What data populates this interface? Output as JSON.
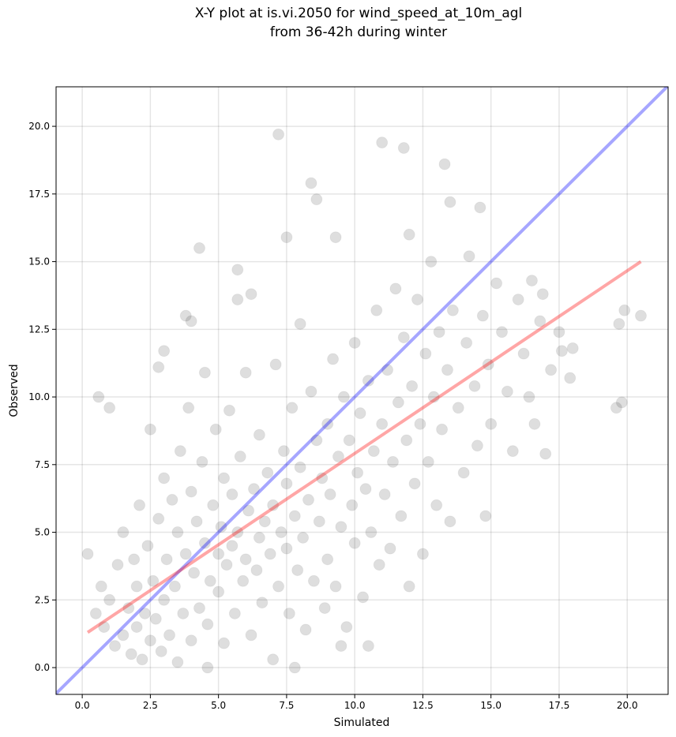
{
  "chart_data": {
    "type": "scatter",
    "title": [
      "X-Y plot at is.vi.2050 for wind_speed_at_10m_agl",
      "from 36-42h during winter"
    ],
    "x_label": "Simulated",
    "y_label": "Observed",
    "xlim": [
      -0.96,
      21.5
    ],
    "ylim": [
      -0.99,
      21.46
    ],
    "xticks": [
      {
        "value": 0,
        "label": "0.0"
      },
      {
        "value": 2.5,
        "label": "2.5"
      },
      {
        "value": 5,
        "label": "5.0"
      },
      {
        "value": 7.5,
        "label": "7.5"
      },
      {
        "value": 10,
        "label": "10.0"
      },
      {
        "value": 12.5,
        "label": "12.5"
      },
      {
        "value": 15,
        "label": "15.0"
      },
      {
        "value": 17.5,
        "label": "17.5"
      },
      {
        "value": 20,
        "label": "20.0"
      }
    ],
    "yticks": [
      {
        "value": 0,
        "label": "0.0"
      },
      {
        "value": 2.5,
        "label": "2.5"
      },
      {
        "value": 5,
        "label": "5.0"
      },
      {
        "value": 7.5,
        "label": "7.5"
      },
      {
        "value": 10,
        "label": "10.0"
      },
      {
        "value": 12.5,
        "label": "12.5"
      },
      {
        "value": 15,
        "label": "15.0"
      },
      {
        "value": 17.5,
        "label": "17.5"
      },
      {
        "value": 20,
        "label": "20.0"
      }
    ],
    "grid": true,
    "color": "#000000",
    "x": [
      7.2,
      11.0,
      11.8,
      13.3,
      8.4,
      8.6,
      13.5,
      14.6,
      7.5,
      4.3,
      5.7,
      9.3,
      12.0,
      0.6,
      1.0,
      19.6,
      19.8,
      20.5,
      19.9,
      19.7,
      17.0,
      4.6,
      7.8,
      0.2,
      2.8,
      3.0,
      3.8,
      4.0,
      5.7,
      6.2,
      10.5,
      9.5,
      14.8,
      16.6,
      17.9,
      18.0,
      17.6,
      16.9,
      16.5,
      0.5,
      0.7,
      0.8,
      1.0,
      1.2,
      1.3,
      1.5,
      1.5,
      1.7,
      1.8,
      1.9,
      2.0,
      2.0,
      2.1,
      2.2,
      2.3,
      2.4,
      2.5,
      2.5,
      2.6,
      2.7,
      2.8,
      2.9,
      3.0,
      3.0,
      3.1,
      3.2,
      3.3,
      3.4,
      3.5,
      3.5,
      3.6,
      3.7,
      3.8,
      3.9,
      4.0,
      4.0,
      4.1,
      4.2,
      4.3,
      4.4,
      4.5,
      4.5,
      4.6,
      4.7,
      4.8,
      4.9,
      5.0,
      5.0,
      5.1,
      5.2,
      5.2,
      5.3,
      5.4,
      5.5,
      5.5,
      5.6,
      5.7,
      5.8,
      5.9,
      6.0,
      6.0,
      6.1,
      6.2,
      6.3,
      6.4,
      6.5,
      6.5,
      6.6,
      6.7,
      6.8,
      6.9,
      7.0,
      7.0,
      7.1,
      7.2,
      7.3,
      7.4,
      7.5,
      7.5,
      7.6,
      7.7,
      7.8,
      7.9,
      8.0,
      8.0,
      8.1,
      8.2,
      8.3,
      8.4,
      8.5,
      8.6,
      8.7,
      8.8,
      8.9,
      9.0,
      9.0,
      9.1,
      9.2,
      9.3,
      9.4,
      9.5,
      9.6,
      9.7,
      9.8,
      9.9,
      10.0,
      10.0,
      10.1,
      10.2,
      10.3,
      10.4,
      10.5,
      10.6,
      10.7,
      10.8,
      10.9,
      11.0,
      11.1,
      11.2,
      11.3,
      11.4,
      11.5,
      11.6,
      11.7,
      11.8,
      11.9,
      12.0,
      12.1,
      12.2,
      12.3,
      12.4,
      12.5,
      12.6,
      12.7,
      12.8,
      12.9,
      13.0,
      13.1,
      13.2,
      13.4,
      13.5,
      13.6,
      13.8,
      14.0,
      14.1,
      14.2,
      14.4,
      14.5,
      14.7,
      14.9,
      15.0,
      15.2,
      15.4,
      15.6,
      15.8,
      16.0,
      16.2,
      16.4,
      16.8,
      17.2,
      17.5
    ],
    "y": [
      19.7,
      19.4,
      19.2,
      18.6,
      17.9,
      17.3,
      17.2,
      17.0,
      15.9,
      15.5,
      14.7,
      15.9,
      16.0,
      10.0,
      9.6,
      9.6,
      9.8,
      13.0,
      13.2,
      12.7,
      7.9,
      0.0,
      0.0,
      4.2,
      11.1,
      11.7,
      13.0,
      12.8,
      13.6,
      13.8,
      0.8,
      0.8,
      5.6,
      9.0,
      10.7,
      11.8,
      11.7,
      13.8,
      14.3,
      2.0,
      3.0,
      1.5,
      2.5,
      0.8,
      3.8,
      1.2,
      5.0,
      2.2,
      0.5,
      4.0,
      1.5,
      3.0,
      6.0,
      0.3,
      2.0,
      4.5,
      1.0,
      8.8,
      3.2,
      1.8,
      5.5,
      0.6,
      2.5,
      7.0,
      4.0,
      1.2,
      6.2,
      3.0,
      0.2,
      5.0,
      8.0,
      2.0,
      4.2,
      9.6,
      1.0,
      6.5,
      3.5,
      5.4,
      2.2,
      7.6,
      4.6,
      10.9,
      1.6,
      3.2,
      6.0,
      8.8,
      2.8,
      4.2,
      5.2,
      7.0,
      0.9,
      3.8,
      9.5,
      4.5,
      6.4,
      2.0,
      5.0,
      7.8,
      3.2,
      4.0,
      10.9,
      5.8,
      1.2,
      6.6,
      3.6,
      4.8,
      8.6,
      2.4,
      5.4,
      7.2,
      4.2,
      0.3,
      6.0,
      11.2,
      3.0,
      5.0,
      8.0,
      4.4,
      6.8,
      2.0,
      9.6,
      5.6,
      3.6,
      7.4,
      12.7,
      4.8,
      1.4,
      6.2,
      10.2,
      3.2,
      8.4,
      5.4,
      7.0,
      2.2,
      9.0,
      4.0,
      6.4,
      11.4,
      3.0,
      7.8,
      5.2,
      10.0,
      1.5,
      8.4,
      6.0,
      12.0,
      4.6,
      7.2,
      9.4,
      2.6,
      6.6,
      10.6,
      5.0,
      8.0,
      13.2,
      3.8,
      9.0,
      6.4,
      11.0,
      4.4,
      7.6,
      14.0,
      9.8,
      5.6,
      12.2,
      8.4,
      3.0,
      10.4,
      6.8,
      13.6,
      9.0,
      4.2,
      11.6,
      7.6,
      15.0,
      10.0,
      6.0,
      12.4,
      8.8,
      11.0,
      5.4,
      13.2,
      9.6,
      7.2,
      12.0,
      15.2,
      10.4,
      8.2,
      13.0,
      11.2,
      9.0,
      14.2,
      12.4,
      10.2,
      8.0,
      13.6,
      11.6,
      10.0,
      12.8,
      11.0,
      12.4
    ],
    "lines": [
      {
        "color": "#0000ff",
        "x": [
          -0.96,
          21.5
        ],
        "y": [
          -0.96,
          21.5
        ]
      },
      {
        "color": "#ff0000",
        "x": [
          0.2,
          20.5
        ],
        "y": [
          1.3,
          15.0
        ]
      }
    ]
  }
}
